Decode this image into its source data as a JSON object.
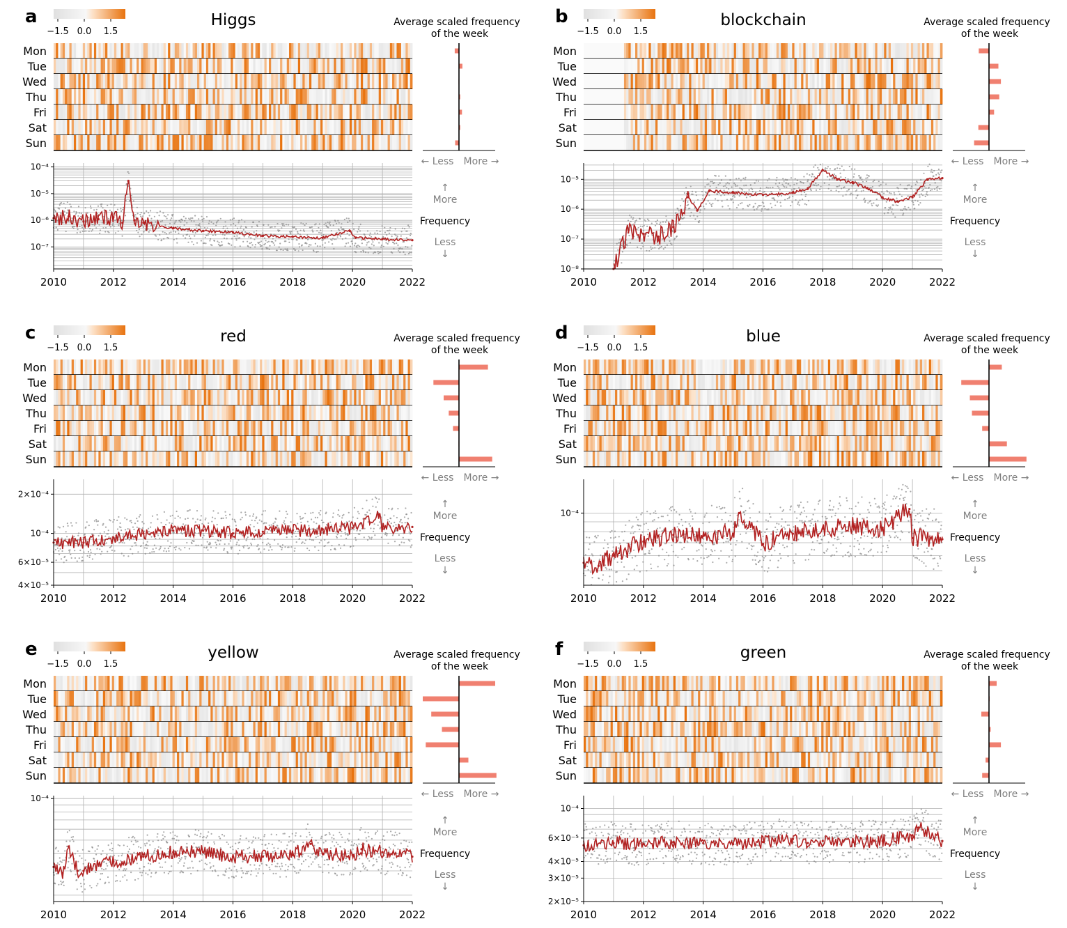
{
  "colorbar": {
    "ticks": [
      "−1.5",
      "0.0",
      "1.5"
    ]
  },
  "days": [
    "Mon",
    "Tue",
    "Wed",
    "Thu",
    "Fri",
    "Sat",
    "Sun"
  ],
  "weekly_title": [
    "Average scaled frequency",
    "of the week"
  ],
  "weekly_axis": {
    "less": "← Less",
    "more": "More →"
  },
  "freq_legend": {
    "up_arrow": "↑",
    "more": "More",
    "label": "Frequency",
    "less": "Less",
    "down_arrow": "↓"
  },
  "colors": {
    "line": "#b22222",
    "scatter": "#8c8c8c",
    "bar": "#f08070",
    "heat_high": "#e8730f",
    "heat_low": "#e6e6e6",
    "grid": "#b0b0b0"
  },
  "chart_data": [
    {
      "type": "heatmap",
      "letter": "a",
      "title": "Higgs",
      "weekly_bars": {
        "days": [
          "Mon",
          "Tue",
          "Wed",
          "Thu",
          "Fri",
          "Sat",
          "Sun"
        ],
        "values": [
          -0.1,
          0.08,
          -0.01,
          0.03,
          0.07,
          0.03,
          -0.09
        ],
        "xlim": [
          -0.85,
          0.85
        ]
      },
      "timeseries": {
        "type": "line",
        "scale": "log",
        "ylim": [
          1.5e-08,
          0.00014
        ],
        "xlim": [
          2010,
          2022
        ],
        "ytick_labels": [
          "10⁻⁴",
          "10⁻⁵",
          "10⁻⁶",
          "10⁻⁷"
        ],
        "ytick_values": [
          0.0001,
          1e-05,
          1e-06,
          1e-07
        ],
        "xtick_labels": [
          "2010",
          "2012",
          "2014",
          "2016",
          "2018",
          "2020",
          "2022"
        ],
        "x": [
          2010.0,
          2010.5,
          2011.0,
          2011.5,
          2012.0,
          2012.3,
          2012.5,
          2012.7,
          2013.0,
          2014.0,
          2015.0,
          2016.0,
          2017.0,
          2018.0,
          2019.0,
          2019.9,
          2020.1,
          2021.0,
          2022.0
        ],
        "y": [
          1.2e-06,
          1.4e-06,
          9e-07,
          1.1e-06,
          1.3e-06,
          8e-07,
          3e-05,
          1e-06,
          8e-07,
          5e-07,
          4e-07,
          3.5e-07,
          2.6e-07,
          2.4e-07,
          2.2e-07,
          4e-07,
          2.2e-07,
          2e-07,
          1.8e-07
        ]
      }
    },
    {
      "type": "heatmap",
      "letter": "b",
      "title": "blockchain",
      "weekly_bars": {
        "days": [
          "Mon",
          "Tue",
          "Wed",
          "Thu",
          "Fri",
          "Sat",
          "Sun"
        ],
        "values": [
          -0.24,
          0.22,
          0.28,
          0.24,
          0.12,
          -0.25,
          -0.35
        ],
        "xlim": [
          -0.85,
          0.85
        ]
      },
      "timeseries": {
        "type": "line",
        "scale": "log",
        "ylim": [
          1e-08,
          3.5e-05
        ],
        "xlim": [
          2010,
          2022
        ],
        "ytick_labels": [
          "10⁻⁵",
          "10⁻⁶",
          "10⁻⁷",
          "10⁻⁸"
        ],
        "ytick_values": [
          1e-05,
          1e-06,
          1e-07,
          1e-08
        ],
        "xtick_labels": [
          "2010",
          "2012",
          "2014",
          "2016",
          "2018",
          "2020",
          "2022"
        ],
        "x": [
          2011.0,
          2011.5,
          2012.0,
          2012.5,
          2013.0,
          2013.5,
          2013.8,
          2014.2,
          2015.0,
          2016.0,
          2017.0,
          2017.5,
          2018.0,
          2018.5,
          2019.0,
          2019.5,
          2020.0,
          2020.5,
          2021.0,
          2021.5,
          2022.0
        ],
        "y": [
          1e-08,
          2e-07,
          1.5e-07,
          1.2e-07,
          2.5e-07,
          2.5e-06,
          9e-07,
          4e-06,
          3.5e-06,
          3e-06,
          3.5e-06,
          5e-06,
          2e-05,
          1e-05,
          8e-06,
          5e-06,
          2.5e-06,
          1.8e-06,
          2.5e-06,
          1e-05,
          1.1e-05
        ]
      }
    },
    {
      "type": "heatmap",
      "letter": "c",
      "title": "red",
      "weekly_bars": {
        "days": [
          "Mon",
          "Tue",
          "Wed",
          "Thu",
          "Fri",
          "Sat",
          "Sun"
        ],
        "values": [
          0.68,
          -0.6,
          -0.36,
          -0.24,
          -0.14,
          -0.01,
          0.78
        ],
        "xlim": [
          -0.85,
          0.85
        ]
      },
      "timeseries": {
        "type": "line",
        "scale": "log",
        "ylim": [
          4e-05,
          0.00026
        ],
        "xlim": [
          2010,
          2022
        ],
        "ytick_labels": [
          "2×10⁻⁴",
          "10⁻⁴",
          "6×10⁻⁵",
          "4×10⁻⁵"
        ],
        "ytick_values": [
          0.0002,
          0.0001,
          6e-05,
          4e-05
        ],
        "xtick_labels": [
          "2010",
          "2012",
          "2014",
          "2016",
          "2018",
          "2020",
          "2022"
        ],
        "x": [
          2010.0,
          2010.5,
          2011.0,
          2012.0,
          2013.0,
          2014.0,
          2015.0,
          2016.0,
          2017.0,
          2018.0,
          2019.0,
          2020.0,
          2020.9,
          2021.0,
          2022.0
        ],
        "y": [
          8.5e-05,
          8.5e-05,
          8.5e-05,
          9.3e-05,
          0.0001,
          0.000105,
          0.000105,
          0.0001,
          0.000103,
          0.000105,
          0.000107,
          0.00011,
          0.00014,
          0.000108,
          0.000112
        ]
      }
    },
    {
      "type": "heatmap",
      "letter": "d",
      "title": "blue",
      "weekly_bars": {
        "days": [
          "Mon",
          "Tue",
          "Wed",
          "Thu",
          "Fri",
          "Sat",
          "Sun"
        ],
        "values": [
          0.3,
          -0.65,
          -0.45,
          -0.4,
          -0.16,
          0.42,
          0.88
        ],
        "xlim": [
          -0.85,
          0.85
        ]
      },
      "timeseries": {
        "type": "line",
        "scale": "log",
        "ylim": [
          4.2e-05,
          0.00015
        ],
        "xlim": [
          2010,
          2022
        ],
        "ytick_labels": [
          "10⁻⁴"
        ],
        "ytick_values": [
          0.0001
        ],
        "xtick_labels": [
          "2010",
          "2012",
          "2014",
          "2016",
          "2018",
          "2020",
          "2022"
        ],
        "x": [
          2010.0,
          2010.5,
          2011.0,
          2012.0,
          2013.0,
          2014.0,
          2015.0,
          2015.2,
          2016.0,
          2017.0,
          2018.0,
          2019.0,
          2020.0,
          2020.9,
          2021.0,
          2022.0
        ],
        "y": [
          5.5e-05,
          5.3e-05,
          6e-05,
          7.1e-05,
          7.7e-05,
          7.6e-05,
          7.8e-05,
          0.0001,
          6.9e-05,
          7.8e-05,
          8.3e-05,
          8.5e-05,
          8.4e-05,
          0.000105,
          7.4e-05,
          7.3e-05
        ]
      }
    },
    {
      "type": "heatmap",
      "letter": "e",
      "title": "yellow",
      "weekly_bars": {
        "days": [
          "Mon",
          "Tue",
          "Wed",
          "Thu",
          "Fri",
          "Sat",
          "Sun"
        ],
        "values": [
          0.85,
          -0.85,
          -0.65,
          -0.4,
          -0.78,
          0.22,
          0.88
        ],
        "xlim": [
          -0.85,
          0.85
        ]
      },
      "timeseries": {
        "type": "line",
        "scale": "log",
        "ylim": [
          1.8e-05,
          0.000105
        ],
        "xlim": [
          2010,
          2022
        ],
        "ytick_labels": [
          "10⁻⁴"
        ],
        "ytick_values": [
          0.0001
        ],
        "xtick_labels": [
          "2010",
          "2012",
          "2014",
          "2016",
          "2018",
          "2020",
          "2022"
        ],
        "x": [
          2010.0,
          2010.3,
          2010.5,
          2010.8,
          2011.0,
          2012.0,
          2013.0,
          2014.0,
          2015.0,
          2016.0,
          2017.0,
          2018.0,
          2018.6,
          2019.0,
          2020.0,
          2020.3,
          2021.0,
          2022.0
        ],
        "y": [
          3.2e-05,
          2.9e-05,
          4.5e-05,
          3e-05,
          3e-05,
          3.5e-05,
          3.8e-05,
          4.1e-05,
          4.1e-05,
          3.8e-05,
          3.8e-05,
          3.9e-05,
          4.7e-05,
          4e-05,
          3.9e-05,
          4.3e-05,
          4.1e-05,
          3.8e-05
        ]
      }
    },
    {
      "type": "heatmap",
      "letter": "f",
      "title": "green",
      "weekly_bars": {
        "days": [
          "Mon",
          "Tue",
          "Wed",
          "Thu",
          "Fri",
          "Sat",
          "Sun"
        ],
        "values": [
          0.18,
          0.0,
          -0.18,
          0.04,
          0.28,
          -0.08,
          -0.16
        ],
        "xlim": [
          -0.85,
          0.85
        ]
      },
      "timeseries": {
        "type": "line",
        "scale": "log",
        "ylim": [
          2e-05,
          0.000125
        ],
        "xlim": [
          2010,
          2022
        ],
        "ytick_labels": [
          "10⁻⁴",
          "6×10⁻⁵",
          "4×10⁻⁵",
          "3×10⁻⁵",
          "2×10⁻⁵"
        ],
        "ytick_values": [
          0.0001,
          6e-05,
          4e-05,
          3e-05,
          2e-05
        ],
        "xtick_labels": [
          "2010",
          "2012",
          "2014",
          "2016",
          "2018",
          "2020",
          "2022"
        ],
        "x": [
          2010.0,
          2011.0,
          2012.0,
          2013.0,
          2014.0,
          2015.0,
          2016.0,
          2017.0,
          2017.5,
          2018.0,
          2019.0,
          2020.0,
          2021.0,
          2021.2,
          2022.0
        ],
        "y": [
          5.3e-05,
          5.5e-05,
          5.4e-05,
          5.6e-05,
          5.5e-05,
          5.4e-05,
          5.6e-05,
          5.9e-05,
          5.5e-05,
          5.7e-05,
          5.6e-05,
          5.7e-05,
          6.3e-05,
          7.2e-05,
          5.7e-05
        ]
      }
    }
  ]
}
